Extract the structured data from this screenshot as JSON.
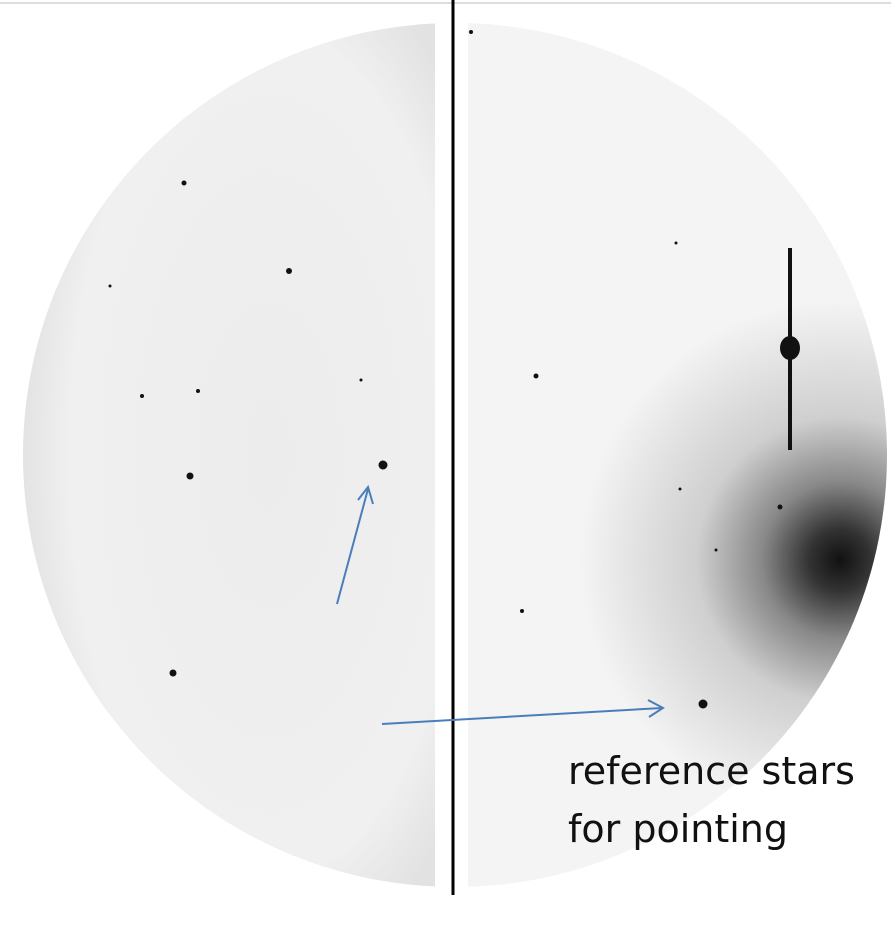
{
  "annotation": {
    "lines": [
      "reference stars",
      "for pointing"
    ]
  }
}
